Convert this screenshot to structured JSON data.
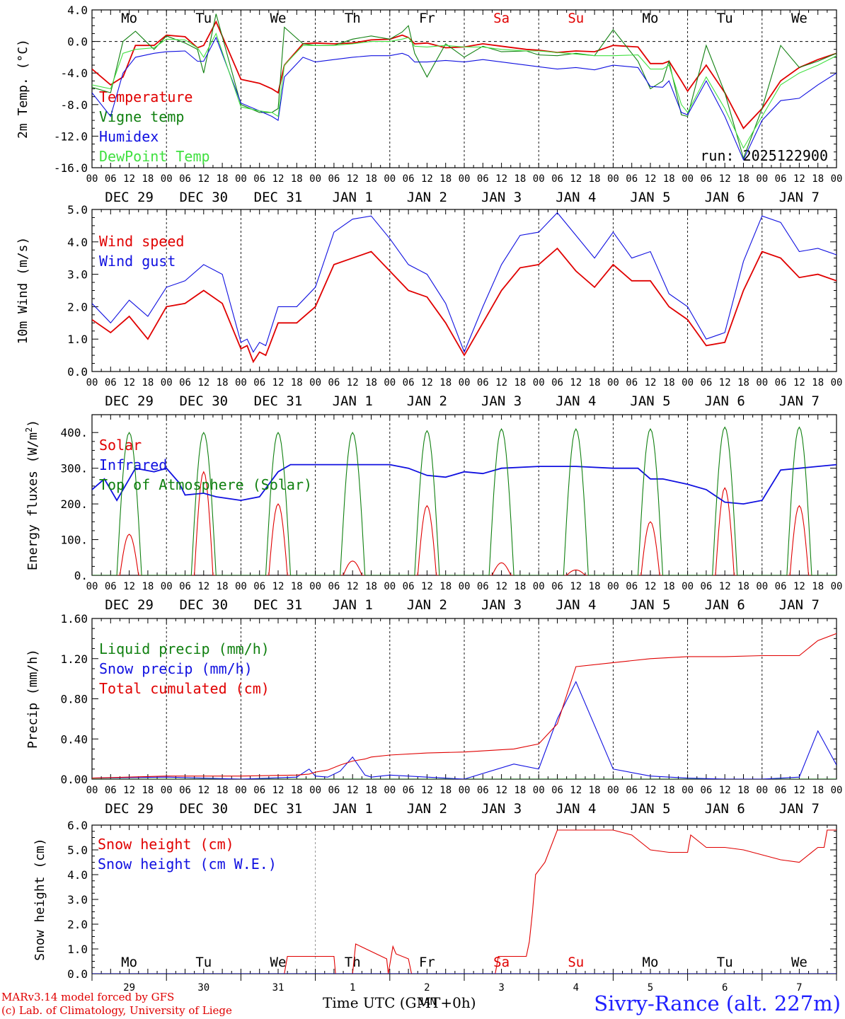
{
  "colors": {
    "red": "#e00000",
    "green": "#108010",
    "blue": "#1010e0",
    "light_green": "#40e040",
    "black": "#000000"
  },
  "day_names": [
    "Mo",
    "Tu",
    "We",
    "Th",
    "Fr",
    "Sa",
    "Su",
    "Mo",
    "Tu",
    "We"
  ],
  "day_name_colors": [
    "#000000",
    "#000000",
    "#000000",
    "#000000",
    "#000000",
    "#e00000",
    "#e00000",
    "#000000",
    "#000000",
    "#000000"
  ],
  "date_labels": [
    "DEC 29",
    "DEC 30",
    "DEC 31",
    "JAN  1",
    "JAN  2",
    "JAN  3",
    "JAN  4",
    "JAN  5",
    "JAN  6",
    "JAN  7"
  ],
  "hour_ticks": [
    "00",
    "06",
    "12",
    "18"
  ],
  "bottom_day_numbers": [
    "29",
    "30",
    "31",
    "1",
    "2",
    "3",
    "4",
    "5",
    "6",
    "7"
  ],
  "bottom_month_label": "JAN",
  "footer": {
    "model": "MARv3.14 model forced by GFS",
    "credit": "(c) Lab. of Climatology, University of Liege",
    "xaxis": "Time UTC (GMT+0h)",
    "station": "Sivry-Rance (alt. 227m)"
  },
  "chart_data": [
    {
      "type": "line",
      "id": "temperature",
      "ylabel": "2m Temp. (°C)",
      "ylim": [
        -16,
        4
      ],
      "yticks": [
        "4.0",
        "0.0",
        "-4.0",
        "-8.0",
        "-12.0",
        "-16.0"
      ],
      "annotation": "run: 2025122900",
      "x_hours": [
        0,
        6,
        10,
        14,
        20,
        24,
        30,
        34,
        36,
        40,
        48,
        54,
        58,
        60,
        62,
        68,
        72,
        78,
        84,
        90,
        96,
        100,
        102,
        104,
        108,
        114,
        120,
        126,
        132,
        140,
        144,
        150,
        156,
        162,
        168,
        176,
        180,
        184,
        186,
        190,
        192,
        198,
        204,
        210,
        216,
        222,
        228,
        234,
        240
      ],
      "series": [
        {
          "name": "Temperature",
          "color": "#e00000",
          "values": [
            -3.5,
            -5.5,
            -4.5,
            -0.5,
            -0.5,
            0.8,
            0.6,
            -0.8,
            -0.5,
            2.5,
            -4.8,
            -5.3,
            -6.0,
            -6.5,
            -3.0,
            -0.3,
            -0.2,
            -0.3,
            -0.2,
            0.2,
            0.3,
            0.8,
            0.5,
            -0.3,
            -0.2,
            -0.8,
            -0.7,
            -0.3,
            -0.6,
            -1.0,
            -1.1,
            -1.4,
            -1.2,
            -1.3,
            -0.5,
            -0.7,
            -2.8,
            -2.8,
            -2.5,
            -5.0,
            -6.3,
            -3.0,
            -6.5,
            -11.0,
            -8.5,
            -5.0,
            -3.3,
            -2.3,
            -1.5
          ]
        },
        {
          "name": "Vigne temp",
          "color": "#108010",
          "values": [
            -5.8,
            -6.5,
            0.0,
            1.3,
            -1.0,
            0.7,
            -0.2,
            -1.0,
            -4.0,
            3.5,
            -8.0,
            -9.0,
            -9.0,
            -8.5,
            1.8,
            -0.3,
            -0.5,
            -0.5,
            0.3,
            0.7,
            0.3,
            1.2,
            2.0,
            -1.5,
            -4.5,
            -0.3,
            -2.0,
            -0.6,
            -1.3,
            -1.2,
            -1.7,
            -1.8,
            -1.5,
            -1.8,
            1.5,
            -2.5,
            -6.0,
            -5.0,
            -2.5,
            -9.3,
            -9.5,
            -0.5,
            -6.5,
            -14.8,
            -8.5,
            -0.5,
            -3.3,
            -2.5,
            -1.5
          ]
        },
        {
          "name": "Humidex",
          "color": "#1010e0",
          "values": [
            -6.5,
            -9.5,
            -4.0,
            -2.0,
            -1.5,
            -1.3,
            -1.2,
            -2.5,
            -2.5,
            0.5,
            -7.8,
            -8.8,
            -9.5,
            -10.0,
            -4.5,
            -2.0,
            -2.6,
            -2.3,
            -2.0,
            -1.8,
            -1.8,
            -1.5,
            -1.8,
            -2.6,
            -2.6,
            -2.4,
            -2.6,
            -2.3,
            -2.6,
            -3.0,
            -3.2,
            -3.5,
            -3.3,
            -3.6,
            -3.0,
            -3.3,
            -5.7,
            -5.8,
            -5.0,
            -9.0,
            -9.3,
            -5.0,
            -9.5,
            -15.0,
            -10.0,
            -7.5,
            -7.2,
            -5.5,
            -4.0
          ]
        },
        {
          "name": "DewPoint Temp",
          "color": "#40e040",
          "values": [
            -5.5,
            -6.0,
            -1.5,
            -1.0,
            -0.8,
            0.3,
            0.2,
            -0.8,
            -2.0,
            1.0,
            -8.3,
            -8.8,
            -9.0,
            -9.5,
            -3.0,
            -0.5,
            -0.5,
            -0.5,
            -0.3,
            0.0,
            0.0,
            0.3,
            0.5,
            -0.6,
            -0.7,
            -0.5,
            -0.7,
            -0.7,
            -1.0,
            -1.2,
            -1.2,
            -1.4,
            -1.6,
            -1.8,
            -1.8,
            -1.7,
            -3.5,
            -3.5,
            -3.0,
            -8.0,
            -9.0,
            -4.5,
            -8.5,
            -13.5,
            -9.5,
            -5.5,
            -4.0,
            -3.0,
            -1.8
          ]
        }
      ]
    },
    {
      "type": "line",
      "id": "wind",
      "ylabel": "10m Wind (m/s)",
      "ylim": [
        0,
        5
      ],
      "yticks": [
        "5.0",
        "4.0",
        "3.0",
        "2.0",
        "1.0",
        "0.0"
      ],
      "x_hours": [
        0,
        6,
        12,
        18,
        24,
        30,
        36,
        42,
        48,
        50,
        52,
        54,
        56,
        60,
        66,
        72,
        78,
        84,
        90,
        96,
        102,
        108,
        114,
        120,
        126,
        132,
        138,
        144,
        150,
        156,
        162,
        168,
        174,
        180,
        186,
        192,
        198,
        204,
        210,
        216,
        222,
        228,
        234,
        240
      ],
      "series": [
        {
          "name": "Wind speed",
          "color": "#e00000",
          "values": [
            1.6,
            1.2,
            1.7,
            1.0,
            2.0,
            2.1,
            2.5,
            2.1,
            0.7,
            0.8,
            0.3,
            0.6,
            0.5,
            1.5,
            1.5,
            2.0,
            3.3,
            3.5,
            3.7,
            3.1,
            2.5,
            2.3,
            1.5,
            0.5,
            1.5,
            2.5,
            3.2,
            3.3,
            3.8,
            3.1,
            2.6,
            3.3,
            2.8,
            2.8,
            2.0,
            1.6,
            0.8,
            0.9,
            2.5,
            3.7,
            3.5,
            2.9,
            3.0,
            2.8
          ]
        },
        {
          "name": "Wind gust",
          "color": "#1010e0",
          "values": [
            2.1,
            1.5,
            2.2,
            1.7,
            2.6,
            2.8,
            3.3,
            3.0,
            0.9,
            1.0,
            0.6,
            0.9,
            0.8,
            2.0,
            2.0,
            2.6,
            4.3,
            4.7,
            4.8,
            4.1,
            3.3,
            3.0,
            2.1,
            0.6,
            2.0,
            3.3,
            4.2,
            4.3,
            4.9,
            4.2,
            3.5,
            4.3,
            3.5,
            3.7,
            2.4,
            2.0,
            1.0,
            1.2,
            3.4,
            4.8,
            4.6,
            3.7,
            3.8,
            3.6
          ]
        }
      ]
    },
    {
      "type": "line",
      "id": "energy",
      "ylabel": "Energy fluxes (W/m2)",
      "ylim": [
        0,
        450
      ],
      "yticks": [
        "400.",
        "300.",
        "200.",
        "100.",
        "0."
      ],
      "series": [
        {
          "name": "Solar",
          "color": "#e00000",
          "peaks": [
            115,
            290,
            200,
            40,
            195,
            35,
            15,
            150,
            245,
            195
          ]
        },
        {
          "name": "Infrared",
          "color": "#1010e0",
          "x_hours": [
            0,
            4,
            8,
            14,
            20,
            24,
            28,
            30,
            36,
            40,
            48,
            54,
            60,
            64,
            72,
            84,
            96,
            102,
            108,
            114,
            120,
            126,
            132,
            144,
            156,
            168,
            176,
            180,
            184,
            192,
            198,
            204,
            210,
            216,
            222,
            228,
            234,
            240
          ],
          "values": [
            240,
            270,
            210,
            300,
            290,
            300,
            260,
            225,
            230,
            220,
            210,
            220,
            290,
            310,
            310,
            310,
            310,
            300,
            280,
            275,
            290,
            285,
            300,
            305,
            305,
            300,
            300,
            270,
            270,
            255,
            240,
            205,
            200,
            210,
            295,
            300,
            305,
            310
          ]
        },
        {
          "name": "Top of Atmosphere (Solar)",
          "color": "#108010",
          "peaks": [
            400,
            400,
            400,
            400,
            405,
            410,
            410,
            410,
            415,
            415
          ]
        }
      ]
    },
    {
      "type": "line",
      "id": "precip",
      "ylabel": "Precip (mm/h)",
      "ylim": [
        0,
        1.6
      ],
      "yticks": [
        "1.60",
        "1.20",
        "0.80",
        "0.40",
        "0.00"
      ],
      "x_hours": [
        0,
        24,
        48,
        66,
        70,
        72,
        76,
        80,
        84,
        88,
        90,
        96,
        108,
        120,
        136,
        144,
        150,
        156,
        168,
        180,
        192,
        204,
        216,
        228,
        234,
        240
      ],
      "series": [
        {
          "name": "Liquid precip (mm/h)",
          "color": "#108010",
          "values": [
            0,
            0,
            0,
            0,
            0,
            0,
            0,
            0,
            0,
            0,
            0,
            0,
            0,
            0,
            0,
            0,
            0,
            0,
            0,
            0,
            0,
            0,
            0,
            0,
            0,
            0
          ]
        },
        {
          "name": "Snow precip (mm/h)",
          "color": "#1010e0",
          "values": [
            0.01,
            0.02,
            0.0,
            0.02,
            0.1,
            0.03,
            0.02,
            0.08,
            0.22,
            0.04,
            0.02,
            0.04,
            0.02,
            0.0,
            0.15,
            0.1,
            0.6,
            0.97,
            0.1,
            0.03,
            0.01,
            0.0,
            0.0,
            0.02,
            0.48,
            0.14
          ]
        },
        {
          "name": "Total cumulated (cm)",
          "color": "#e00000",
          "values": [
            0.01,
            0.03,
            0.03,
            0.04,
            0.05,
            0.07,
            0.09,
            0.14,
            0.18,
            0.2,
            0.22,
            0.24,
            0.26,
            0.27,
            0.3,
            0.35,
            0.55,
            1.12,
            1.16,
            1.2,
            1.22,
            1.22,
            1.23,
            1.23,
            1.38,
            1.45
          ]
        }
      ]
    },
    {
      "type": "line",
      "id": "snow",
      "ylabel": "Snow height (cm)",
      "ylim": [
        0,
        6
      ],
      "yticks": [
        "6.0",
        "5.0",
        "4.0",
        "3.0",
        "2.0",
        "1.0",
        "0.0"
      ],
      "x_hours": [
        0,
        24,
        48,
        62,
        63,
        78,
        78.5,
        84,
        85,
        95,
        95.5,
        97,
        98,
        102,
        103,
        120,
        130,
        131,
        138,
        139,
        140,
        141,
        142,
        143,
        146,
        150,
        168,
        174,
        180,
        186,
        192,
        193,
        198,
        204,
        210,
        216,
        222,
        228,
        234,
        236,
        237,
        240
      ],
      "series": [
        {
          "name": "Snow height (cm)",
          "color": "#e00000",
          "values": [
            0,
            0,
            0,
            0,
            0.7,
            0.7,
            0,
            0,
            1.2,
            0.6,
            0,
            1.1,
            0.8,
            0.6,
            0,
            0,
            0,
            0.7,
            0.7,
            0.7,
            0.7,
            1.3,
            2.5,
            4.0,
            4.5,
            5.8,
            5.8,
            5.6,
            5.0,
            4.9,
            4.9,
            5.6,
            5.1,
            5.1,
            5.0,
            4.8,
            4.6,
            4.5,
            5.1,
            5.1,
            5.8,
            5.8
          ]
        },
        {
          "name": "Snow height (cm W.E.)",
          "color": "#1010e0",
          "values": [
            0,
            0,
            0,
            0,
            0,
            0,
            0,
            0,
            0,
            0,
            0,
            0,
            0,
            0,
            0,
            0,
            0,
            0,
            0,
            0,
            0,
            0,
            0,
            0,
            0,
            0,
            0,
            0,
            0,
            0,
            0,
            0,
            0,
            0,
            0,
            0,
            0,
            0,
            0,
            0,
            0,
            0
          ]
        }
      ]
    }
  ]
}
